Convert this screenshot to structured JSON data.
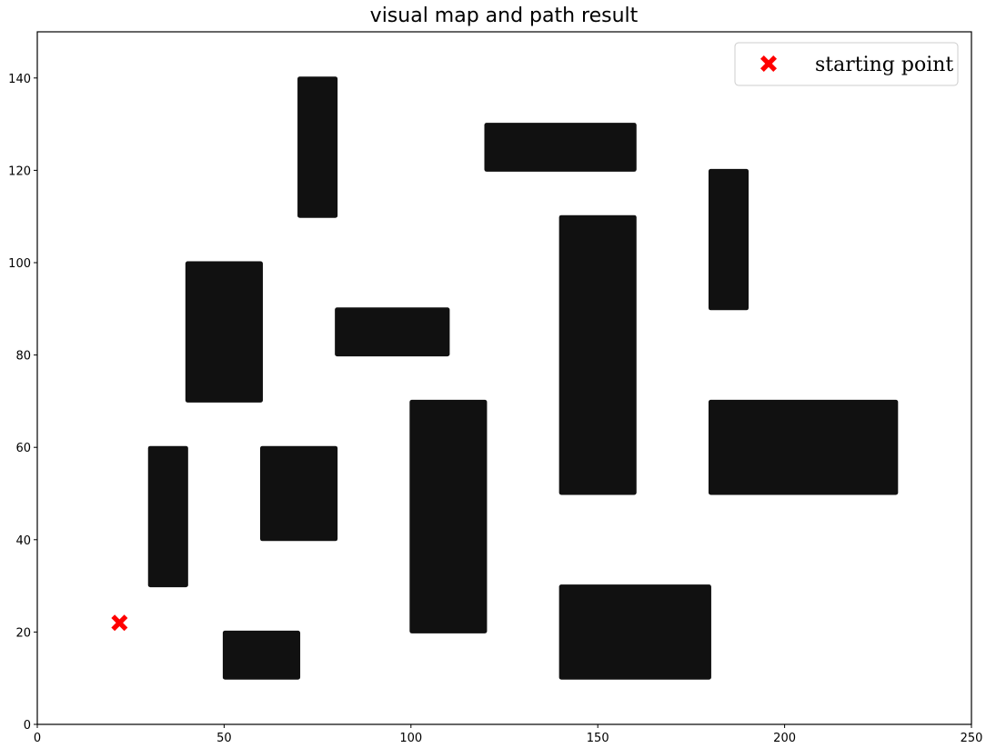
{
  "chart_data": {
    "type": "scatter",
    "title": "visual map and path result",
    "xlabel": "",
    "ylabel": "",
    "xlim": [
      0,
      250
    ],
    "ylim": [
      0,
      150
    ],
    "xticks": [
      0,
      50,
      100,
      150,
      200,
      250
    ],
    "yticks": [
      0,
      20,
      40,
      60,
      80,
      100,
      120,
      140
    ],
    "grid": false,
    "legend": {
      "placement": "upper right",
      "entries": [
        {
          "label": "starting point",
          "marker": "x-filled",
          "color": "#ff0000"
        }
      ]
    },
    "obstacle_color": "#000000",
    "obstacles": [
      {
        "x": [
          70,
          80
        ],
        "y": [
          110,
          140
        ]
      },
      {
        "x": [
          120,
          160
        ],
        "y": [
          120,
          130
        ]
      },
      {
        "x": [
          180,
          190
        ],
        "y": [
          90,
          120
        ]
      },
      {
        "x": [
          40,
          60
        ],
        "y": [
          70,
          100
        ]
      },
      {
        "x": [
          80,
          110
        ],
        "y": [
          80,
          90
        ]
      },
      {
        "x": [
          140,
          160
        ],
        "y": [
          50,
          110
        ]
      },
      {
        "x": [
          180,
          230
        ],
        "y": [
          50,
          70
        ]
      },
      {
        "x": [
          30,
          40
        ],
        "y": [
          30,
          60
        ]
      },
      {
        "x": [
          60,
          80
        ],
        "y": [
          40,
          60
        ]
      },
      {
        "x": [
          100,
          120
        ],
        "y": [
          20,
          70
        ]
      },
      {
        "x": [
          50,
          70
        ],
        "y": [
          10,
          20
        ]
      },
      {
        "x": [
          140,
          180
        ],
        "y": [
          10,
          30
        ]
      }
    ],
    "series": [
      {
        "name": "starting point",
        "points": [
          {
            "x": 22,
            "y": 22
          }
        ],
        "color": "#ff0000"
      }
    ]
  }
}
